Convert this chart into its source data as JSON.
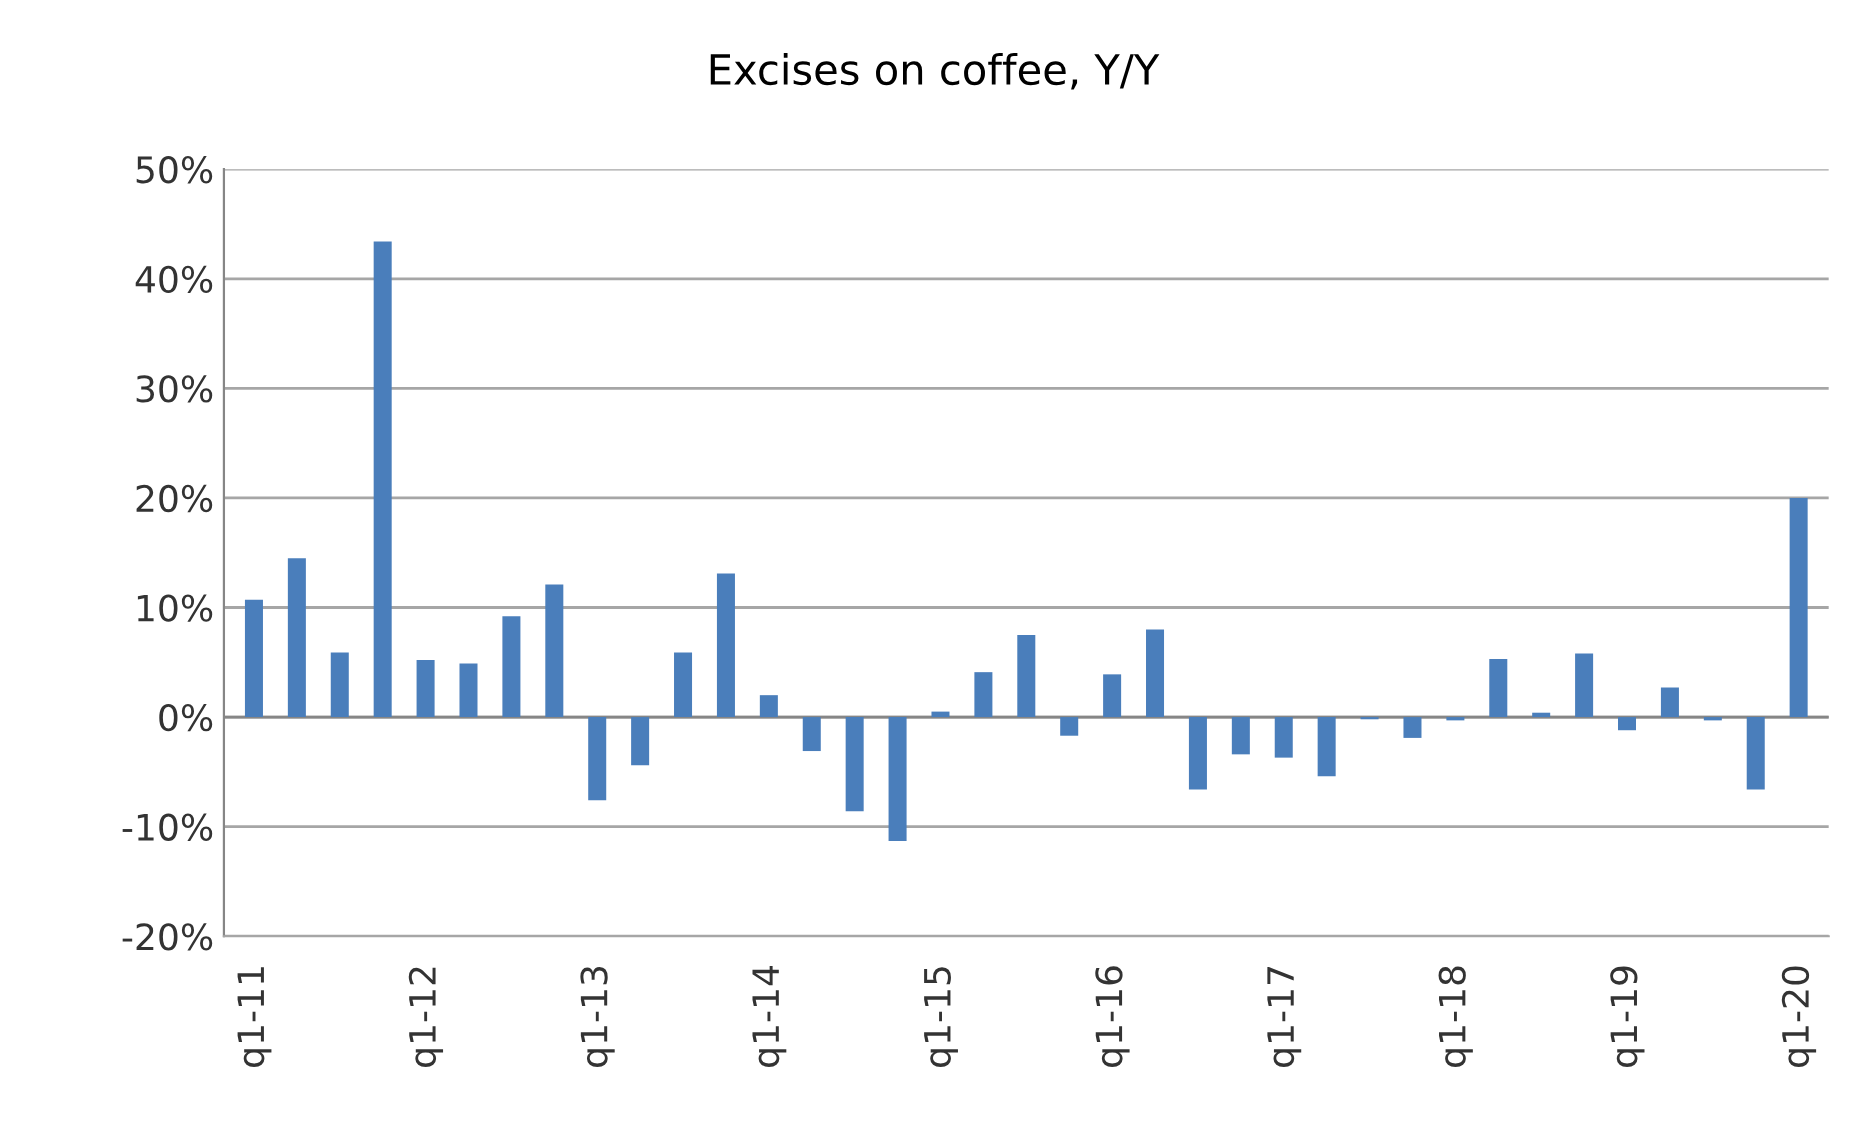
{
  "chart_data": {
    "type": "bar",
    "title": "Excises on coffee, Y/Y",
    "categories": [
      "q1-11",
      null,
      null,
      null,
      "q1-12",
      null,
      null,
      null,
      "q1-13",
      null,
      null,
      null,
      "q1-14",
      null,
      null,
      null,
      "q1-15",
      null,
      null,
      null,
      "q1-16",
      null,
      null,
      null,
      "q1-17",
      null,
      null,
      null,
      "q1-18",
      null,
      null,
      null,
      "q1-19",
      null,
      null,
      null,
      "q1-20"
    ],
    "values": [
      10.7,
      14.5,
      5.9,
      43.4,
      5.2,
      4.9,
      9.2,
      12.1,
      -7.6,
      -4.4,
      5.9,
      13.1,
      2.0,
      -3.1,
      -8.6,
      -11.3,
      0.5,
      4.1,
      7.5,
      -1.7,
      3.9,
      8.0,
      -6.6,
      -3.4,
      -3.7,
      -5.4,
      -0.2,
      -1.9,
      -0.3,
      5.3,
      0.4,
      5.8,
      -1.2,
      2.7,
      -0.3,
      -6.6,
      20.0
    ],
    "color": "#4a7ebb",
    "ylim": [
      -20,
      50
    ],
    "yticks": [
      {
        "value": -20,
        "label": "-20%"
      },
      {
        "value": -10,
        "label": "-10%"
      },
      {
        "value": 0,
        "label": "0%"
      },
      {
        "value": 10,
        "label": "10%"
      },
      {
        "value": 20,
        "label": "20%"
      },
      {
        "value": 30,
        "label": "30%"
      },
      {
        "value": 40,
        "label": "40%"
      },
      {
        "value": 50,
        "label": "50%"
      }
    ],
    "grid": "y",
    "legend": false
  }
}
